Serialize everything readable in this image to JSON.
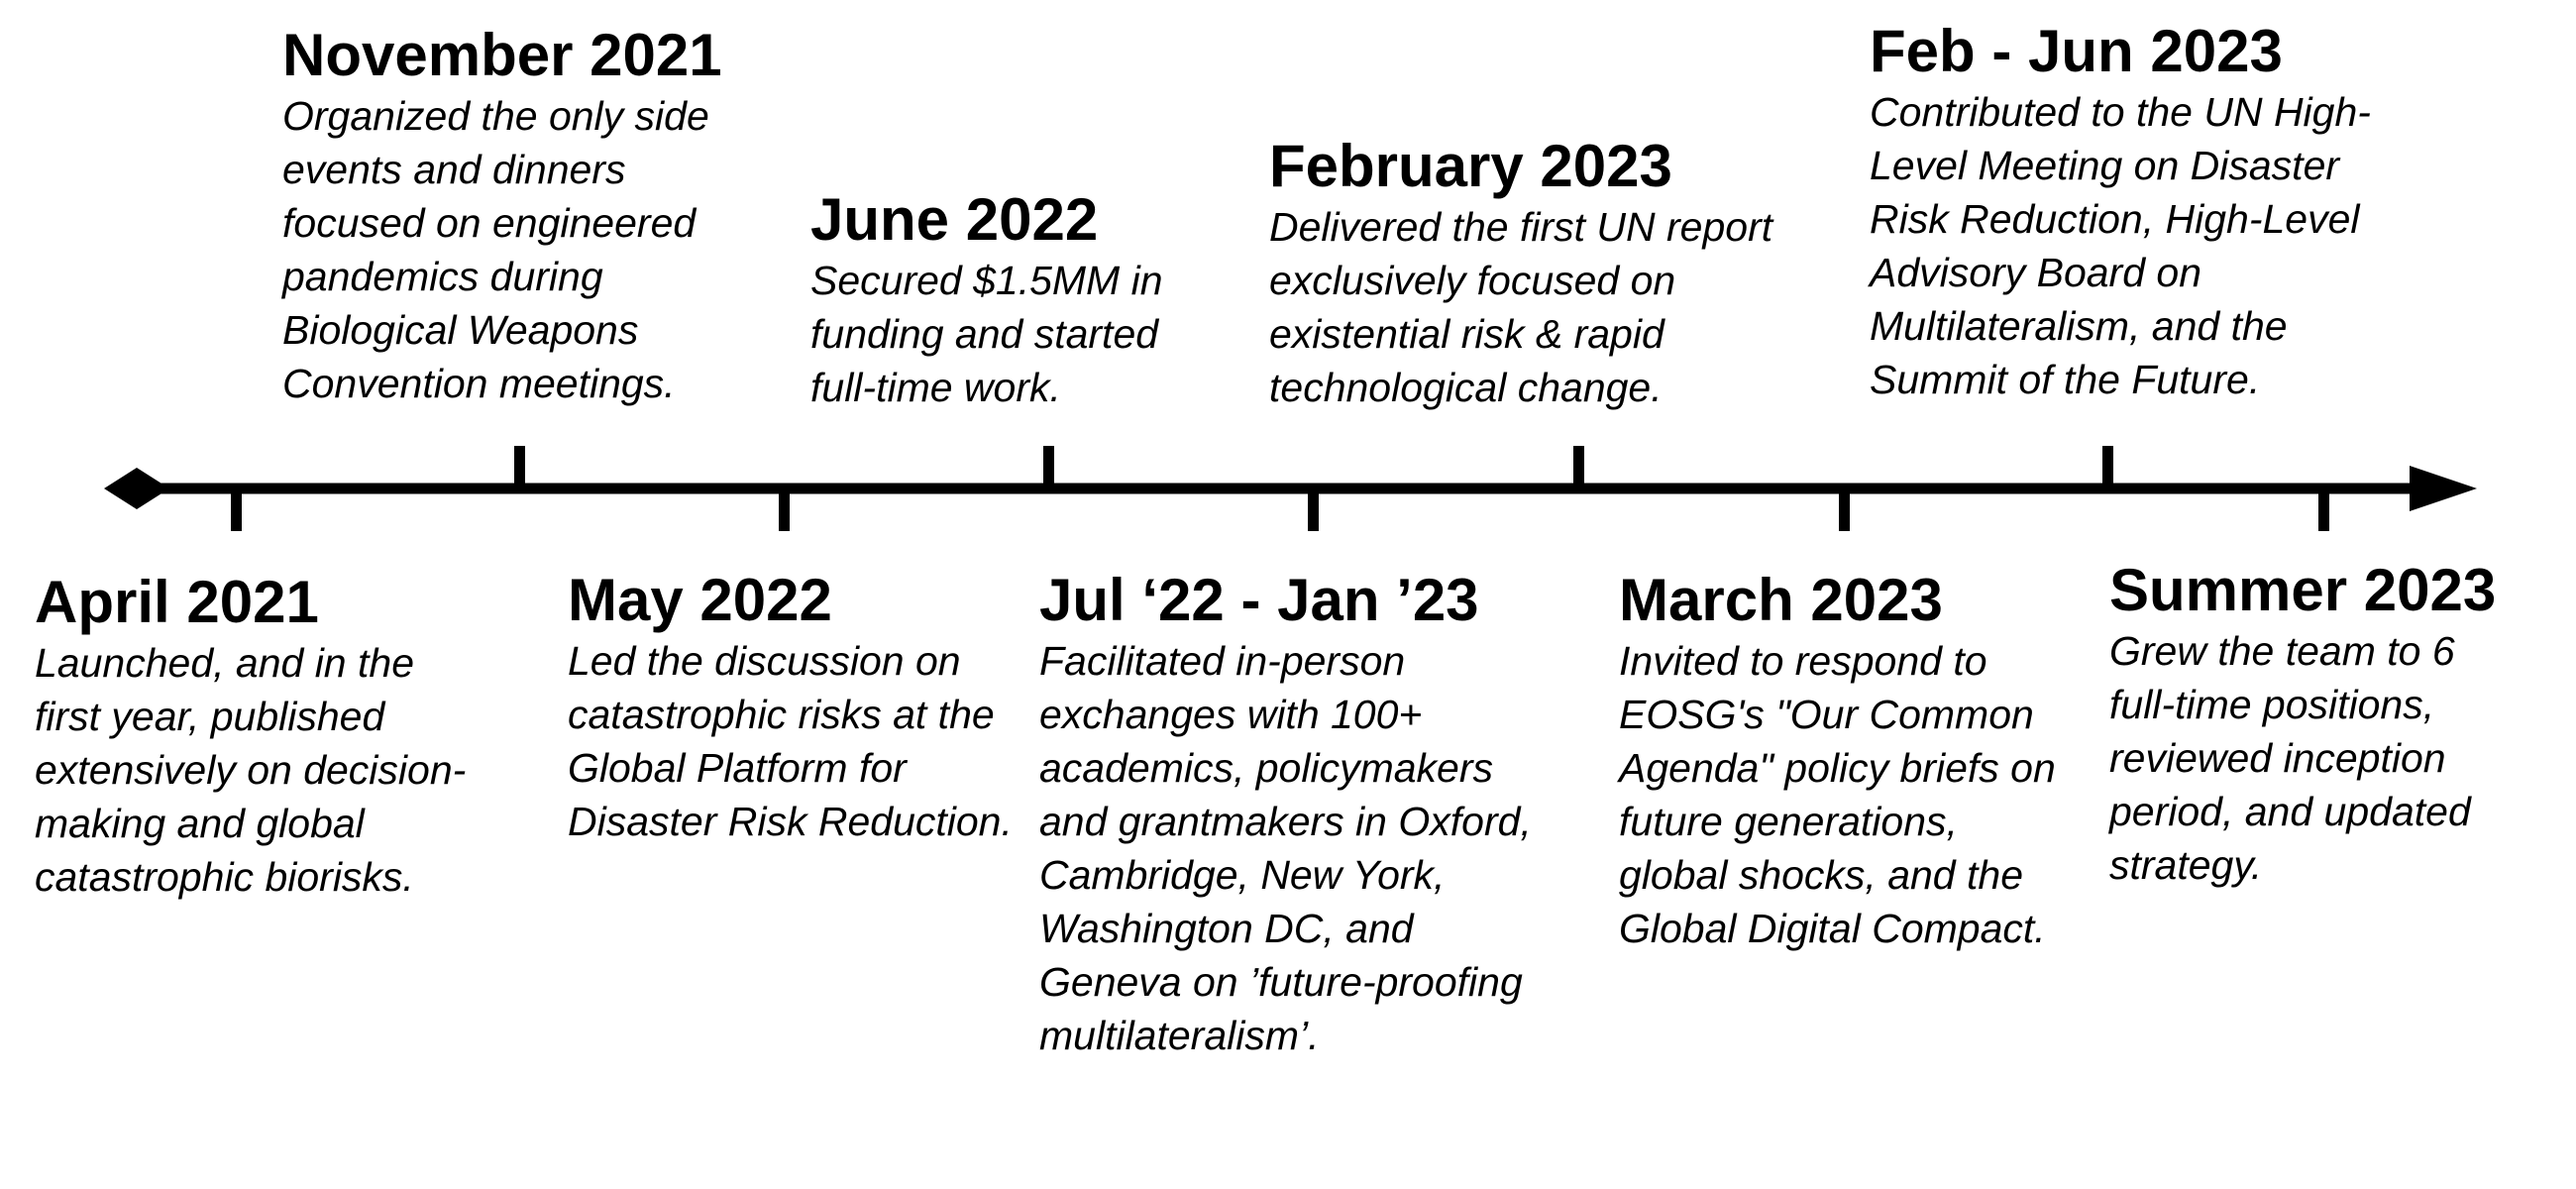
{
  "timeline": {
    "events": [
      {
        "id": "april-2021",
        "title": "April 2021",
        "description": "Launched, and in the first year, published extensively on decision-making and global catastrophic biorisks.",
        "side": "below"
      },
      {
        "id": "november-2021",
        "title": "November 2021",
        "description": "Organized the only side events and dinners focused on engineered pandemics during Biological Weapons Convention meetings.",
        "side": "above"
      },
      {
        "id": "may-2022",
        "title": "May 2022",
        "description": "Led the discussion on catastrophic risks at the Global Platform for Disaster Risk Reduction.",
        "side": "below"
      },
      {
        "id": "june-2022",
        "title": "June 2022",
        "description": "Secured $1.5MM in funding and started full-time work.",
        "side": "above"
      },
      {
        "id": "jul22-jan23",
        "title": "Jul ‘22 - Jan ’23",
        "description": "Facilitated in-person exchanges with 100+ academics, policymakers and grantmakers in Oxford, Cambridge, New York, Washington DC, and Geneva on ’future-proofing multilateralism’.",
        "side": "below"
      },
      {
        "id": "february-2023",
        "title": "February 2023",
        "description": "Delivered the first UN report exclusively focused on existential risk & rapid technological change.",
        "side": "above"
      },
      {
        "id": "march-2023",
        "title": "March 2023",
        "description": "Invited to respond to EOSG's \"Our Common Agenda\" policy briefs on future generations, global shocks, and the Global Digital Compact.",
        "side": "below"
      },
      {
        "id": "feb-jun-2023",
        "title": "Feb - Jun 2023",
        "description": "Contributed to the UN High-Level Meeting on Disaster Risk Reduction, High-Level Advisory Board on Multilateralism, and the Summit of the Future.",
        "side": "above"
      },
      {
        "id": "summer-2023",
        "title": "Summer 2023",
        "description": "Grew the team to 6 full-time positions, reviewed inception period, and updated strategy.",
        "side": "below"
      }
    ]
  }
}
